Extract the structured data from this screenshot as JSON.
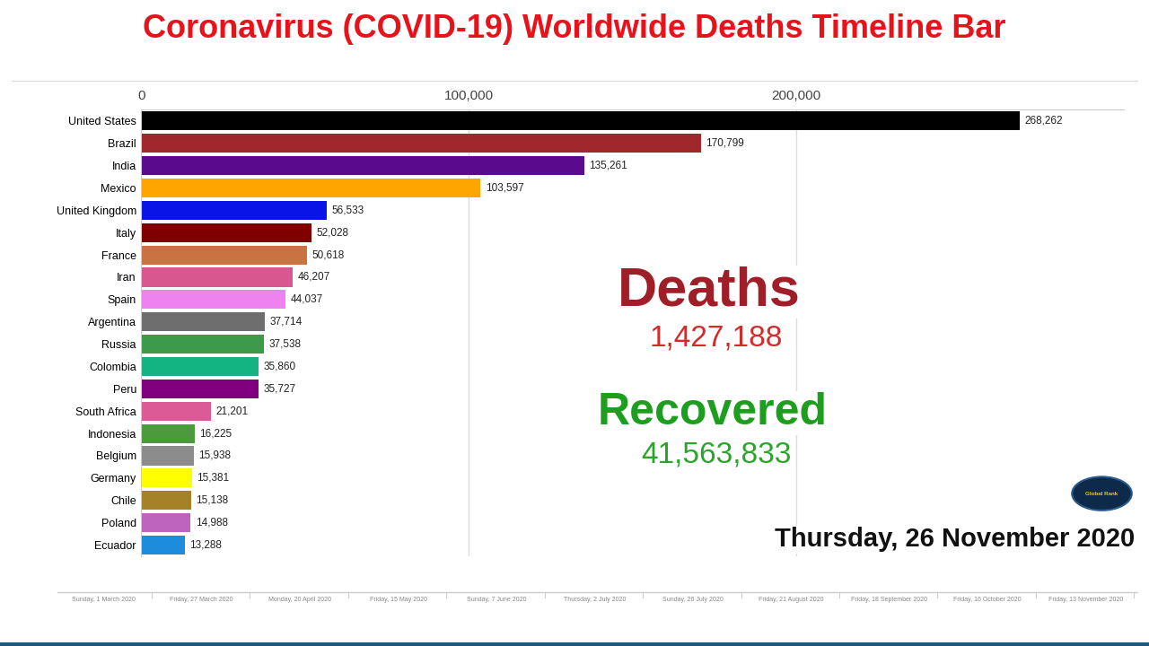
{
  "chart_data": {
    "type": "bar",
    "orientation": "horizontal",
    "title": "Coronavirus (COVID-19) Worldwide Deaths Timeline Bar",
    "categories": [
      "United States",
      "Brazil",
      "India",
      "Mexico",
      "United Kingdom",
      "Italy",
      "France",
      "Iran",
      "Spain",
      "Argentina",
      "Russia",
      "Colombia",
      "Peru",
      "South Africa",
      "Indonesia",
      "Belgium",
      "Germany",
      "Chile",
      "Poland",
      "Ecuador"
    ],
    "values": [
      268262,
      170799,
      135261,
      103597,
      56533,
      52028,
      50618,
      46207,
      44037,
      37714,
      37538,
      35860,
      35727,
      21201,
      16225,
      15938,
      15381,
      15138,
      14988,
      13288
    ],
    "value_labels": [
      "268,262",
      "170,799",
      "135,261",
      "103,597",
      "56,533",
      "52,028",
      "50,618",
      "46,207",
      "44,037",
      "37,714",
      "37,538",
      "35,860",
      "35,727",
      "21,201",
      "16,225",
      "15,938",
      "15,381",
      "15,138",
      "14,988",
      "13,288"
    ],
    "colors": [
      "#000000",
      "#a0282d",
      "#5a0a8c",
      "#ffa500",
      "#0a14e6",
      "#800000",
      "#c87341",
      "#d9578f",
      "#ee82ee",
      "#6e6e6e",
      "#3c9b4b",
      "#14b482",
      "#800080",
      "#dc5a96",
      "#4b9b3c",
      "#8c8c8c",
      "#ffff00",
      "#a58228",
      "#be64be",
      "#1e8cdc"
    ],
    "data_labels": true,
    "xlim": [
      0,
      300000
    ],
    "xticks": [
      0,
      {
        "value": 100000,
        "label": "100,000"
      },
      {
        "value": 200000,
        "label": "200,000"
      }
    ],
    "grid": true,
    "annotations": {
      "deaths_label": "Deaths",
      "deaths_total": "1,427,188",
      "recovered_label": "Recovered",
      "recovered_total": "41,563,833",
      "date": "Thursday, 26 November 2020",
      "logo": "Global Rank"
    },
    "timeline": [
      "Sunday, 1 March 2020",
      "Friday, 27 March 2020",
      "Monday, 20 April 2020",
      "Friday, 15 May 2020",
      "Sunday, 7 June 2020",
      "Thursday, 2 July 2020",
      "Sunday, 26 July 2020",
      "Friday, 21 August 2020",
      "Friday, 18 September 2020",
      "Friday, 16 October 2020",
      "Friday, 13 November 2020"
    ]
  }
}
